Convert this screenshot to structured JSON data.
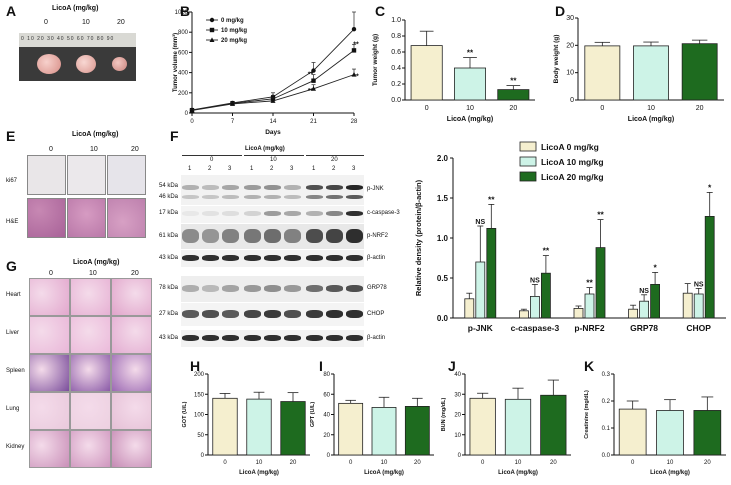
{
  "panels": {
    "A": {
      "letter": "A",
      "title": "LicoA (mg/kg)",
      "groups": [
        "0",
        "10",
        "20"
      ],
      "ruler": "0 10 20 30 40 50 60 70 80 90"
    },
    "B": {
      "letter": "B"
    },
    "C": {
      "letter": "C"
    },
    "D": {
      "letter": "D"
    },
    "E": {
      "letter": "E",
      "title": "LicoA (mg/kg)",
      "groups": [
        "0",
        "10",
        "20"
      ],
      "rows": [
        "ki67",
        "H&E"
      ]
    },
    "F": {
      "letter": "F",
      "title": "LicoA (mg/kg)",
      "groups": [
        "0",
        "10",
        "20"
      ],
      "lanes": [
        "1",
        "2",
        "3",
        "1",
        "2",
        "3",
        "1",
        "2",
        "3"
      ],
      "blots": [
        {
          "kda": "54 kDa",
          "kda2": "46 kDa",
          "protein": "p-JNK"
        },
        {
          "kda": "17 kDa",
          "protein": "c-caspase-3"
        },
        {
          "kda": "61 kDa",
          "protein": "p-NRF2"
        },
        {
          "kda": "43 kDa",
          "protein": "β-actin"
        },
        {
          "kda": "78 kDa",
          "protein": "GRP78"
        },
        {
          "kda": "27 kDa",
          "protein": "CHOP"
        },
        {
          "kda": "43 kDa",
          "protein": "β-actin"
        }
      ]
    },
    "G": {
      "letter": "G",
      "title": "LicoA (mg/kg)",
      "groups": [
        "0",
        "10",
        "20"
      ],
      "rows": [
        "Heart",
        "Liver",
        "Spleen",
        "Lung",
        "Kidney"
      ]
    },
    "H": {
      "letter": "H"
    },
    "I": {
      "letter": "I"
    },
    "J": {
      "letter": "J"
    },
    "K": {
      "letter": "K"
    }
  },
  "colors": {
    "c0": "#f5efcf",
    "c10": "#cdf3e7",
    "c20": "#1e6b1f"
  },
  "chart_data": [
    {
      "id": "B",
      "type": "line",
      "title": "",
      "xlabel": "Days",
      "ylabel": "Tumor volume (mm³)",
      "x": [
        0,
        7,
        14,
        21,
        28
      ],
      "xticks": [
        "0",
        "7",
        "14",
        "21",
        "28"
      ],
      "ylim": [
        0,
        1000
      ],
      "yticks": [
        "0",
        "200",
        "400",
        "600",
        "800",
        "1000"
      ],
      "series": [
        {
          "name": "0 mg/kg",
          "marker": "circle",
          "values": [
            30,
            100,
            160,
            420,
            830
          ],
          "err": [
            10,
            15,
            40,
            80,
            170
          ],
          "sig": [
            "",
            "",
            "",
            "",
            ""
          ]
        },
        {
          "name": "10 mg/kg",
          "marker": "square",
          "values": [
            28,
            95,
            140,
            320,
            620
          ],
          "err": [
            10,
            15,
            35,
            60,
            60
          ],
          "sig": [
            "",
            "",
            "",
            "**",
            "**"
          ]
        },
        {
          "name": "20 mg/kg",
          "marker": "triangle",
          "values": [
            25,
            90,
            120,
            240,
            380
          ],
          "err": [
            10,
            15,
            30,
            40,
            55
          ],
          "sig": [
            "",
            "",
            "",
            "**",
            "**"
          ]
        }
      ]
    },
    {
      "id": "C",
      "type": "bar",
      "xlabel": "LicoA (mg/kg)",
      "ylabel": "Tumor weight (g)",
      "categories": [
        "0",
        "10",
        "20"
      ],
      "values": [
        0.68,
        0.4,
        0.13
      ],
      "err": [
        0.18,
        0.13,
        0.05
      ],
      "ylim": [
        0,
        1.0
      ],
      "yticks": [
        "0.0",
        "0.2",
        "0.4",
        "0.6",
        "0.8",
        "1.0"
      ],
      "sig": [
        "",
        "**",
        "**"
      ]
    },
    {
      "id": "D",
      "type": "bar",
      "xlabel": "LicoA (mg/kg)",
      "ylabel": "Body weight (g)",
      "categories": [
        "0",
        "10",
        "20"
      ],
      "values": [
        19.8,
        19.8,
        20.6
      ],
      "err": [
        1.3,
        1.4,
        1.3
      ],
      "ylim": [
        0,
        30
      ],
      "yticks": [
        "0",
        "10",
        "20",
        "30"
      ],
      "sig": [
        "",
        "",
        ""
      ]
    },
    {
      "id": "F",
      "type": "bar",
      "xlabel": "",
      "ylabel": "Relative density (protein/β-actin)",
      "categories": [
        "p-JNK",
        "c-caspase-3",
        "p-NRF2",
        "GRP78",
        "CHOP"
      ],
      "ylim": [
        0,
        2.0
      ],
      "yticks": [
        "0.0",
        "0.5",
        "1.0",
        "1.5",
        "2.0"
      ],
      "legend": "top-right",
      "series": [
        {
          "name": "LicoA 0 mg/kg",
          "values": [
            0.24,
            0.09,
            0.12,
            0.11,
            0.31
          ],
          "err": [
            0.07,
            0.02,
            0.03,
            0.05,
            0.12
          ],
          "sig": [
            "",
            "",
            "",
            "",
            ""
          ]
        },
        {
          "name": "LicoA 10 mg/kg",
          "values": [
            0.7,
            0.27,
            0.3,
            0.21,
            0.3
          ],
          "err": [
            0.45,
            0.15,
            0.08,
            0.08,
            0.07
          ],
          "sig": [
            "NS",
            "NS",
            "**",
            "NS",
            "NS"
          ]
        },
        {
          "name": "LicoA 20 mg/kg",
          "values": [
            1.12,
            0.56,
            0.88,
            0.42,
            1.27
          ],
          "err": [
            0.3,
            0.22,
            0.35,
            0.15,
            0.3
          ],
          "sig": [
            "**",
            "**",
            "**",
            "*",
            "*"
          ]
        }
      ]
    },
    {
      "id": "H",
      "type": "bar",
      "xlabel": "LicoA (mg/kg)",
      "ylabel": "GOT (U/L)",
      "categories": [
        "0",
        "10",
        "20"
      ],
      "values": [
        140,
        138,
        132
      ],
      "err": [
        12,
        17,
        22
      ],
      "ylim": [
        0,
        200
      ],
      "yticks": [
        "0",
        "50",
        "100",
        "150",
        "200"
      ],
      "sig": [
        "",
        "",
        ""
      ]
    },
    {
      "id": "I",
      "type": "bar",
      "xlabel": "LicoA (mg/kg)",
      "ylabel": "GPT (U/L)",
      "categories": [
        "0",
        "10",
        "20"
      ],
      "values": [
        51,
        47,
        48
      ],
      "err": [
        3,
        10,
        8
      ],
      "ylim": [
        0,
        80
      ],
      "yticks": [
        "0",
        "20",
        "40",
        "60",
        "80"
      ],
      "sig": [
        "",
        "",
        ""
      ]
    },
    {
      "id": "J",
      "type": "bar",
      "xlabel": "LicoA (mg/kg)",
      "ylabel": "BUN (mg/dL)",
      "categories": [
        "0",
        "10",
        "20"
      ],
      "values": [
        28,
        27.5,
        29.5
      ],
      "err": [
        2.5,
        5.5,
        7.5
      ],
      "ylim": [
        0,
        40
      ],
      "yticks": [
        "0",
        "10",
        "20",
        "30",
        "40"
      ],
      "sig": [
        "",
        "",
        ""
      ]
    },
    {
      "id": "K",
      "type": "bar",
      "xlabel": "LicoA (mg/kg)",
      "ylabel": "Creatinine (mg/dL)",
      "categories": [
        "0",
        "10",
        "20"
      ],
      "values": [
        0.17,
        0.165,
        0.165
      ],
      "err": [
        0.03,
        0.04,
        0.05
      ],
      "ylim": [
        0,
        0.3
      ],
      "yticks": [
        "0.0",
        "0.1",
        "0.2",
        "0.3"
      ],
      "sig": [
        "",
        "",
        ""
      ]
    }
  ]
}
